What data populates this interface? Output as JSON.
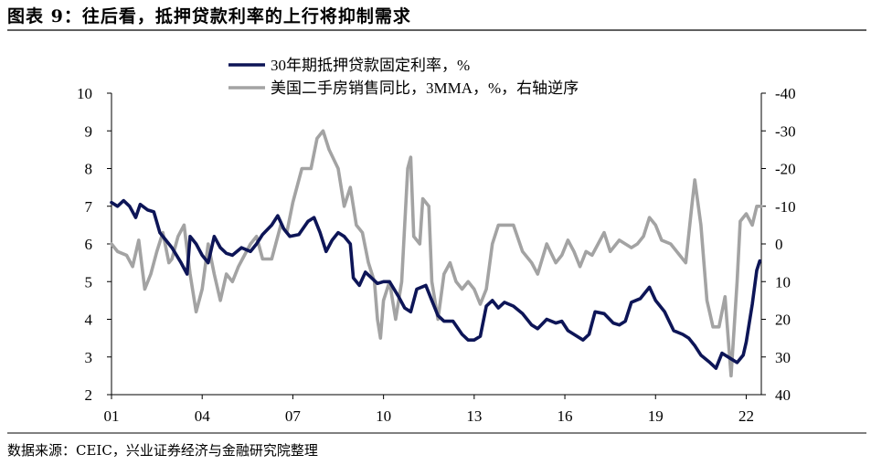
{
  "figure": {
    "title": "图表 9：往后看，抵押贷款利率的上行将抑制需求",
    "source": "数据来源：CEIC，兴业证券经济与金融研究院整理"
  },
  "chart_data": {
    "type": "line",
    "x_tick_labels": [
      "01",
      "04",
      "07",
      "10",
      "13",
      "16",
      "19",
      "22"
    ],
    "x_tick_years": [
      2001,
      2004,
      2007,
      2010,
      2013,
      2016,
      2019,
      2022
    ],
    "x_range": [
      2001.0,
      2022.5
    ],
    "left_axis": {
      "ticks": [
        2,
        3,
        4,
        5,
        6,
        7,
        8,
        9,
        10
      ],
      "range": [
        2,
        10
      ]
    },
    "right_axis": {
      "ticks": [
        40,
        30,
        20,
        10,
        0,
        -10,
        -20,
        -30,
        -40
      ],
      "range": [
        40,
        -40
      ],
      "inverted": true
    },
    "series": [
      {
        "name": "30年期抵押贷款固定利率，%",
        "axis": "left",
        "color": "#0d1557",
        "points": [
          [
            2001.0,
            7.1
          ],
          [
            2001.2,
            7.0
          ],
          [
            2001.4,
            7.15
          ],
          [
            2001.6,
            7.0
          ],
          [
            2001.8,
            6.7
          ],
          [
            2001.95,
            7.05
          ],
          [
            2002.2,
            6.9
          ],
          [
            2002.4,
            6.85
          ],
          [
            2002.6,
            6.3
          ],
          [
            2002.8,
            6.1
          ],
          [
            2003.0,
            5.9
          ],
          [
            2003.3,
            5.5
          ],
          [
            2003.5,
            5.2
          ],
          [
            2003.6,
            6.2
          ],
          [
            2003.8,
            6.0
          ],
          [
            2004.0,
            5.7
          ],
          [
            2004.2,
            5.5
          ],
          [
            2004.4,
            6.2
          ],
          [
            2004.6,
            5.9
          ],
          [
            2004.8,
            5.75
          ],
          [
            2005.0,
            5.7
          ],
          [
            2005.3,
            5.9
          ],
          [
            2005.6,
            5.8
          ],
          [
            2005.8,
            6.0
          ],
          [
            2006.0,
            6.25
          ],
          [
            2006.3,
            6.5
          ],
          [
            2006.5,
            6.75
          ],
          [
            2006.7,
            6.4
          ],
          [
            2006.9,
            6.2
          ],
          [
            2007.2,
            6.25
          ],
          [
            2007.5,
            6.6
          ],
          [
            2007.7,
            6.7
          ],
          [
            2007.9,
            6.3
          ],
          [
            2008.1,
            5.8
          ],
          [
            2008.3,
            6.1
          ],
          [
            2008.5,
            6.3
          ],
          [
            2008.7,
            6.2
          ],
          [
            2008.9,
            6.0
          ],
          [
            2009.0,
            5.1
          ],
          [
            2009.2,
            4.9
          ],
          [
            2009.4,
            5.25
          ],
          [
            2009.6,
            5.1
          ],
          [
            2009.8,
            4.95
          ],
          [
            2010.0,
            5.0
          ],
          [
            2010.2,
            5.0
          ],
          [
            2010.5,
            4.6
          ],
          [
            2010.7,
            4.3
          ],
          [
            2010.9,
            4.2
          ],
          [
            2011.1,
            4.8
          ],
          [
            2011.4,
            4.9
          ],
          [
            2011.6,
            4.5
          ],
          [
            2011.8,
            4.1
          ],
          [
            2012.0,
            3.95
          ],
          [
            2012.3,
            3.95
          ],
          [
            2012.6,
            3.6
          ],
          [
            2012.8,
            3.45
          ],
          [
            2013.0,
            3.45
          ],
          [
            2013.2,
            3.55
          ],
          [
            2013.4,
            4.35
          ],
          [
            2013.6,
            4.5
          ],
          [
            2013.8,
            4.3
          ],
          [
            2014.0,
            4.45
          ],
          [
            2014.3,
            4.35
          ],
          [
            2014.6,
            4.15
          ],
          [
            2014.9,
            3.85
          ],
          [
            2015.1,
            3.75
          ],
          [
            2015.4,
            4.0
          ],
          [
            2015.7,
            3.9
          ],
          [
            2015.9,
            3.95
          ],
          [
            2016.1,
            3.7
          ],
          [
            2016.3,
            3.6
          ],
          [
            2016.6,
            3.45
          ],
          [
            2016.8,
            3.6
          ],
          [
            2017.0,
            4.2
          ],
          [
            2017.3,
            4.15
          ],
          [
            2017.6,
            3.9
          ],
          [
            2017.8,
            3.85
          ],
          [
            2018.0,
            3.95
          ],
          [
            2018.2,
            4.45
          ],
          [
            2018.5,
            4.55
          ],
          [
            2018.8,
            4.85
          ],
          [
            2019.0,
            4.5
          ],
          [
            2019.3,
            4.2
          ],
          [
            2019.6,
            3.7
          ],
          [
            2019.9,
            3.6
          ],
          [
            2020.1,
            3.5
          ],
          [
            2020.3,
            3.3
          ],
          [
            2020.5,
            3.05
          ],
          [
            2020.8,
            2.85
          ],
          [
            2021.0,
            2.7
          ],
          [
            2021.2,
            3.1
          ],
          [
            2021.5,
            2.95
          ],
          [
            2021.7,
            2.85
          ],
          [
            2021.9,
            3.05
          ],
          [
            2022.0,
            3.4
          ],
          [
            2022.2,
            4.4
          ],
          [
            2022.35,
            5.3
          ],
          [
            2022.45,
            5.55
          ]
        ]
      },
      {
        "name": "美国二手房销售同比，3MMA，%，右轴逆序",
        "axis": "right",
        "color": "#a3a3a3",
        "points": [
          [
            2001.0,
            0
          ],
          [
            2001.2,
            2
          ],
          [
            2001.5,
            3
          ],
          [
            2001.7,
            6
          ],
          [
            2001.9,
            -1
          ],
          [
            2002.1,
            12
          ],
          [
            2002.3,
            8
          ],
          [
            2002.5,
            2
          ],
          [
            2002.7,
            -3
          ],
          [
            2002.9,
            5
          ],
          [
            2003.0,
            4
          ],
          [
            2003.2,
            -2
          ],
          [
            2003.4,
            -5
          ],
          [
            2003.6,
            8
          ],
          [
            2003.8,
            18
          ],
          [
            2004.0,
            12
          ],
          [
            2004.2,
            0
          ],
          [
            2004.4,
            8
          ],
          [
            2004.6,
            15
          ],
          [
            2004.8,
            8
          ],
          [
            2005.0,
            10
          ],
          [
            2005.2,
            6
          ],
          [
            2005.4,
            3
          ],
          [
            2005.6,
            0
          ],
          [
            2005.8,
            -2
          ],
          [
            2006.0,
            4
          ],
          [
            2006.3,
            4
          ],
          [
            2006.6,
            -5
          ],
          [
            2006.8,
            -3
          ],
          [
            2007.0,
            -11
          ],
          [
            2007.3,
            -20
          ],
          [
            2007.6,
            -20
          ],
          [
            2007.8,
            -28
          ],
          [
            2008.0,
            -30
          ],
          [
            2008.2,
            -25
          ],
          [
            2008.5,
            -20
          ],
          [
            2008.7,
            -10
          ],
          [
            2008.9,
            -15
          ],
          [
            2009.1,
            -5
          ],
          [
            2009.3,
            -3
          ],
          [
            2009.5,
            5
          ],
          [
            2009.7,
            10
          ],
          [
            2009.8,
            20
          ],
          [
            2009.9,
            25
          ],
          [
            2010.0,
            15
          ],
          [
            2010.2,
            10
          ],
          [
            2010.4,
            20
          ],
          [
            2010.6,
            10
          ],
          [
            2010.8,
            -20
          ],
          [
            2010.9,
            -23
          ],
          [
            2011.0,
            -2
          ],
          [
            2011.2,
            0
          ],
          [
            2011.3,
            -12
          ],
          [
            2011.5,
            -10
          ],
          [
            2011.6,
            10
          ],
          [
            2011.8,
            20
          ],
          [
            2012.0,
            8
          ],
          [
            2012.2,
            5
          ],
          [
            2012.4,
            10
          ],
          [
            2012.6,
            12
          ],
          [
            2012.8,
            10
          ],
          [
            2013.0,
            12
          ],
          [
            2013.2,
            16
          ],
          [
            2013.4,
            12
          ],
          [
            2013.6,
            0
          ],
          [
            2013.8,
            -5
          ],
          [
            2014.0,
            -5
          ],
          [
            2014.3,
            -5
          ],
          [
            2014.6,
            2
          ],
          [
            2014.9,
            5
          ],
          [
            2015.1,
            8
          ],
          [
            2015.4,
            0
          ],
          [
            2015.7,
            5
          ],
          [
            2015.9,
            3
          ],
          [
            2016.1,
            -1
          ],
          [
            2016.3,
            2
          ],
          [
            2016.5,
            6
          ],
          [
            2016.7,
            2
          ],
          [
            2016.9,
            3
          ],
          [
            2017.1,
            0
          ],
          [
            2017.3,
            -3
          ],
          [
            2017.5,
            2
          ],
          [
            2017.8,
            -1
          ],
          [
            2018.0,
            0
          ],
          [
            2018.2,
            1
          ],
          [
            2018.4,
            0
          ],
          [
            2018.6,
            -2
          ],
          [
            2018.8,
            -7
          ],
          [
            2019.0,
            -5
          ],
          [
            2019.2,
            -1
          ],
          [
            2019.5,
            0
          ],
          [
            2019.8,
            3
          ],
          [
            2020.0,
            5
          ],
          [
            2020.2,
            -10
          ],
          [
            2020.3,
            -17
          ],
          [
            2020.5,
            -5
          ],
          [
            2020.7,
            15
          ],
          [
            2020.9,
            22
          ],
          [
            2021.1,
            22
          ],
          [
            2021.3,
            14
          ],
          [
            2021.5,
            35
          ],
          [
            2021.7,
            10
          ],
          [
            2021.8,
            -6
          ],
          [
            2022.0,
            -8
          ],
          [
            2022.2,
            -5
          ],
          [
            2022.35,
            -10
          ],
          [
            2022.5,
            -10
          ]
        ]
      }
    ],
    "legend_position": "top"
  }
}
